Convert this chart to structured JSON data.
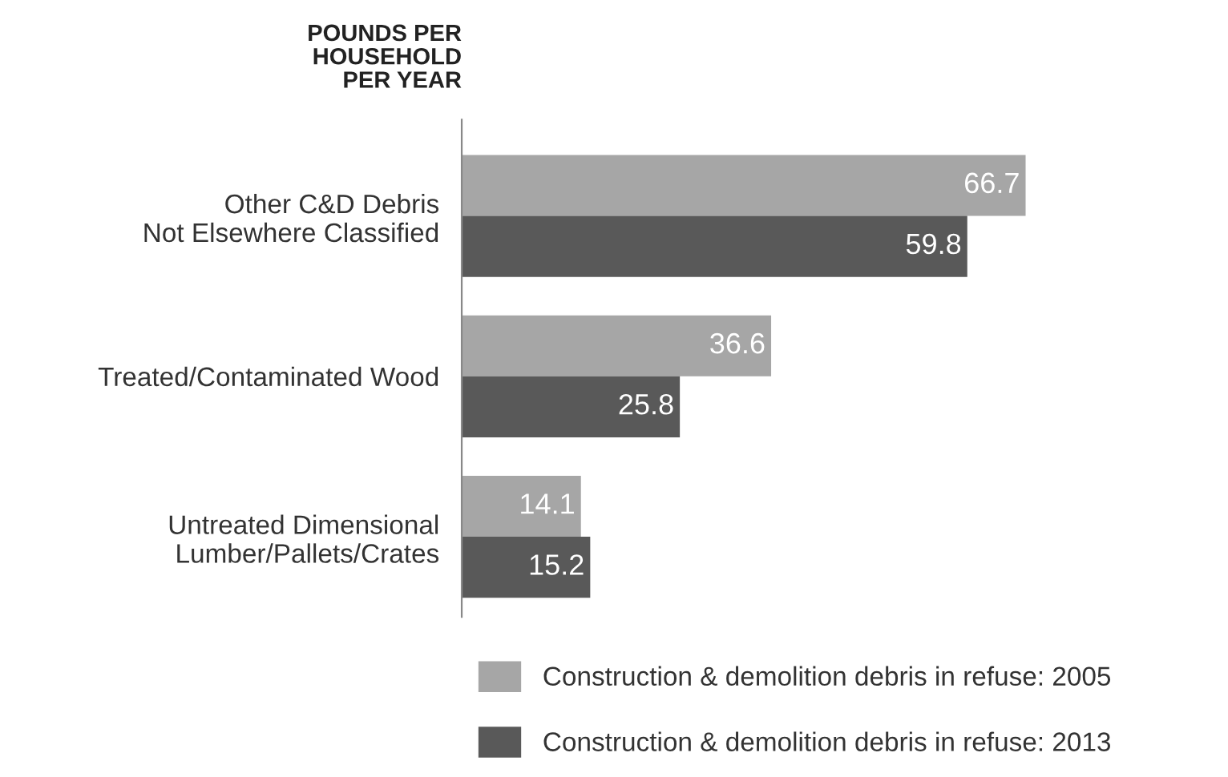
{
  "chart_data": {
    "type": "bar",
    "orientation": "horizontal",
    "title": "POUNDS PER\nHOUSEHOLD\nPER YEAR",
    "categories": [
      "Other C&D Debris\nNot Elsewhere Classified",
      "Treated/Contaminated Wood",
      "Untreated Dimensional\nLumber/Pallets/Crates"
    ],
    "series": [
      {
        "name": "Construction & demolition debris in refuse: 2005",
        "color": "#a6a6a6",
        "values": [
          66.7,
          36.6,
          14.1
        ]
      },
      {
        "name": "Construction & demolition debris in refuse: 2013",
        "color": "#595959",
        "values": [
          59.8,
          25.8,
          15.2
        ]
      }
    ],
    "data_labels": true,
    "legend": "bottom",
    "grid": false
  }
}
